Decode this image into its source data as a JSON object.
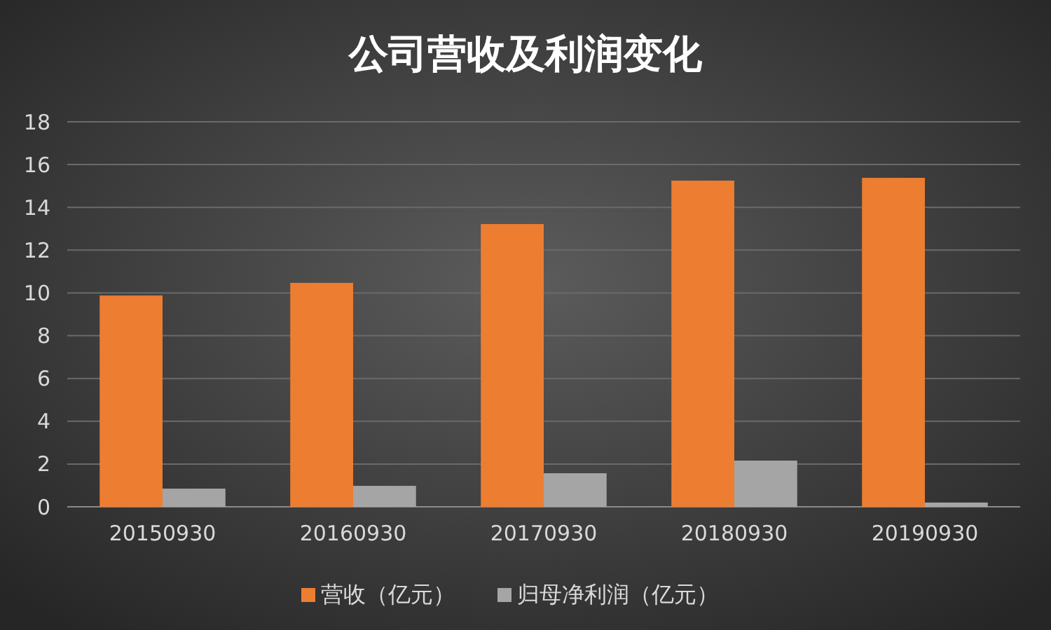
{
  "chart_data": {
    "type": "bar",
    "title": "公司营收及利润变化",
    "categories": [
      "20150930",
      "20160930",
      "20170930",
      "20180930",
      "20190930"
    ],
    "series": [
      {
        "name": "营收（亿元）",
        "color": "#ed7d31",
        "values": [
          9.88,
          10.47,
          13.22,
          15.25,
          15.38
        ]
      },
      {
        "name": "归母净利润（亿元）",
        "color": "#a5a5a5",
        "values": [
          0.85,
          0.98,
          1.57,
          2.16,
          0.2
        ]
      }
    ],
    "ylim": [
      0,
      18
    ],
    "yticks": [
      0,
      2,
      4,
      6,
      8,
      10,
      12,
      14,
      16,
      18
    ],
    "grid": "y",
    "legend": "bottom"
  }
}
